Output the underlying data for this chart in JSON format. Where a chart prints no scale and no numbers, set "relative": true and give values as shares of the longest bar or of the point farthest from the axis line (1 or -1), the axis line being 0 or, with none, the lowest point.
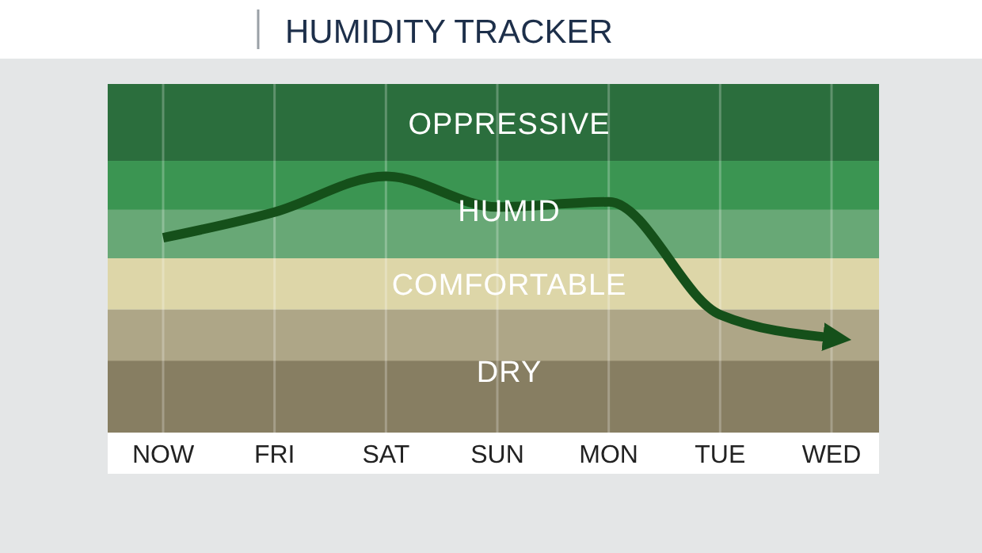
{
  "chart_data": {
    "type": "line",
    "title": "HUMIDITY TRACKER",
    "relative": true,
    "grid": "x",
    "marker": "none",
    "line_style": "solid",
    "categories": [
      "NOW",
      "FRI",
      "SAT",
      "SUN",
      "MON",
      "TUE",
      "WED"
    ],
    "series": [
      {
        "color": "#15501a",
        "values": [
          0.76,
          0.86,
          1,
          0.88,
          0.9,
          0.46,
          0.37
        ]
      }
    ],
    "bands": [
      {
        "axis": "y",
        "from": 1.06,
        "to": 1.36,
        "label": "OPPRESSIVE",
        "color": "#2b6e3d"
      },
      {
        "axis": "y",
        "from": 0.68,
        "to": 1.06,
        "label": "HUMID",
        "color": "#68a876"
      },
      {
        "axis": "y",
        "from": 0.48,
        "to": 0.68,
        "label": "COMFORTABLE",
        "color": "#ddd6a8"
      },
      {
        "axis": "y",
        "from": 0,
        "to": 0.48,
        "label": "DRY",
        "color": "#aea687"
      },
      {
        "axis": "y",
        "from": 0.87,
        "to": 1.06,
        "color": "#3b9552"
      },
      {
        "axis": "y",
        "from": 0,
        "to": 0.28,
        "color": "#877e62"
      }
    ]
  }
}
